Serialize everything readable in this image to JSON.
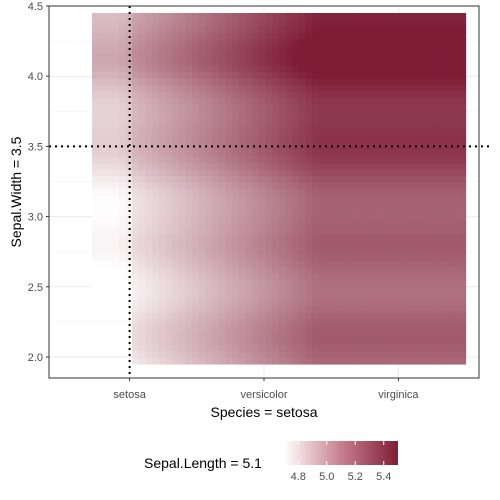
{
  "chart_data": {
    "type": "heatmap",
    "title": "",
    "xlabel": "Species  =  setosa",
    "ylabel": "Sepal.Width  =  3.5",
    "x_categories": [
      "setosa",
      "versicolor",
      "virginica"
    ],
    "x_range": [
      0.4,
      3.6
    ],
    "ylim": [
      1.85,
      4.5
    ],
    "y_ticks": [
      "2.0",
      "2.5",
      "3.0",
      "3.5",
      "4.0",
      "4.5"
    ],
    "y_tick_values": [
      2.0,
      2.5,
      3.0,
      3.5,
      4.0,
      4.5
    ],
    "grid": true,
    "reference_lines": {
      "x": "setosa",
      "y": 3.5
    },
    "fill_range": [
      4.7,
      5.5
    ],
    "fill_low_color": "#ffffff",
    "fill_high_color": "#7f1d35",
    "legend": {
      "title": "Sepal.Length  =  5.1",
      "position": "bottom",
      "ticks": [
        "4.8",
        "5.0",
        "5.2",
        "5.4"
      ],
      "tick_values": [
        4.8,
        5.0,
        5.2,
        5.4
      ],
      "range": [
        4.7,
        5.5
      ]
    }
  }
}
